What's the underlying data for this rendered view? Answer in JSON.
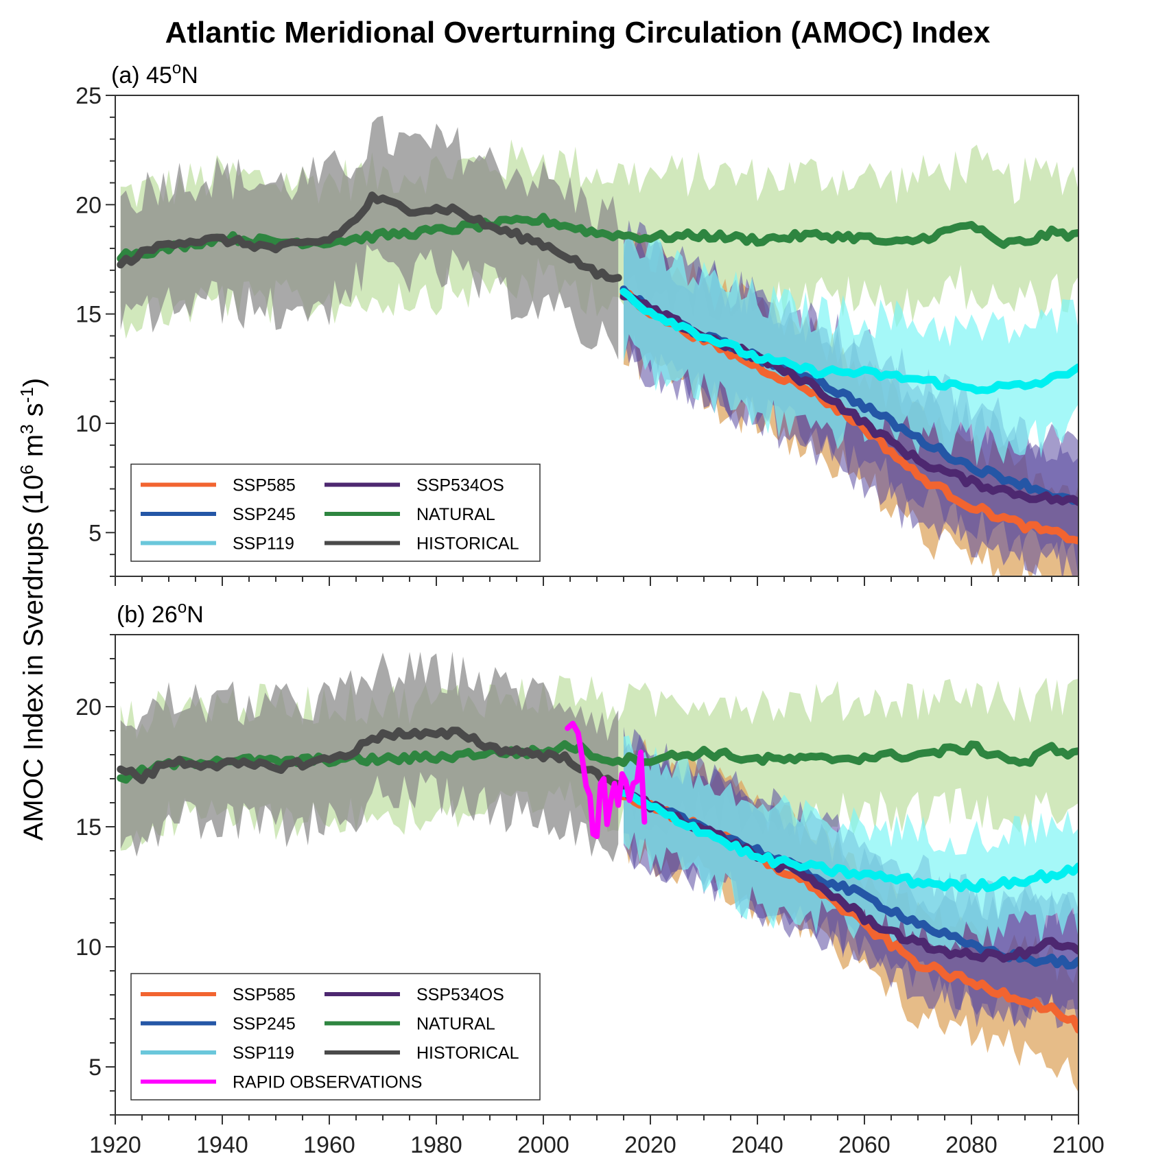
{
  "chart_data": {
    "type": "line",
    "title": "Atlantic Meridional Overturning Circulation (AMOC) Index",
    "ylabel_parts": [
      "AMOC Index in Sverdrups (10",
      "6",
      " m",
      "3",
      " s",
      "-1",
      ")"
    ],
    "xlim": [
      1920,
      2100
    ],
    "xticks": [
      1920,
      1940,
      1960,
      1980,
      2000,
      2020,
      2040,
      2060,
      2080,
      2100
    ],
    "grid": false,
    "legend_placement": "bottom-left",
    "colors": {
      "SSP585": "#f26430",
      "SSP245": "#2456a6",
      "SSP119": "#6ac7db",
      "SSP119_line": "#00f0f0",
      "SSP534OS": "#4d2870",
      "NATURAL": "#2e8540",
      "HISTORICAL": "#4a4a4a",
      "RAPID": "#ff00ff",
      "band_natural": "#b9dc98",
      "band_historical": "#8c8c8c",
      "band_ssp585": "#dda560",
      "band_ssp119": "#7ff5f5",
      "band_ssp245_534": "#5a4aa0"
    },
    "panels": [
      {
        "label_main": "(a) 45",
        "label_sup": "o",
        "label_end": "N",
        "ylim": [
          3,
          25
        ],
        "yticks": [
          5,
          10,
          15,
          20,
          25
        ],
        "legend": [
          {
            "name": "SSP585",
            "key": "SSP585"
          },
          {
            "name": "SSP534OS",
            "key": "SSP534OS"
          },
          {
            "name": "SSP245",
            "key": "SSP245"
          },
          {
            "name": "NATURAL",
            "key": "NATURAL"
          },
          {
            "name": "SSP119",
            "key": "SSP119"
          },
          {
            "name": "HISTORICAL",
            "key": "HISTORICAL"
          }
        ],
        "series": [
          {
            "name": "NATURAL",
            "key": "NATURAL",
            "spread": 3.1,
            "points": [
              [
                1921,
                17.7
              ],
              [
                1930,
                18.0
              ],
              [
                1940,
                18.5
              ],
              [
                1950,
                18.3
              ],
              [
                1960,
                18.3
              ],
              [
                1970,
                18.6
              ],
              [
                1980,
                18.8
              ],
              [
                1990,
                19.1
              ],
              [
                2000,
                19.3
              ],
              [
                2010,
                18.7
              ],
              [
                2020,
                18.5
              ],
              [
                2030,
                18.6
              ],
              [
                2040,
                18.4
              ],
              [
                2050,
                18.6
              ],
              [
                2060,
                18.5
              ],
              [
                2065,
                18.2
              ],
              [
                2070,
                18.4
              ],
              [
                2080,
                19.1
              ],
              [
                2085,
                18.2
              ],
              [
                2090,
                18.3
              ],
              [
                2095,
                18.7
              ],
              [
                2100,
                18.6
              ]
            ]
          },
          {
            "name": "HISTORICAL",
            "key": "HISTORICAL",
            "spread": 3.2,
            "points": [
              [
                1921,
                17.3
              ],
              [
                1930,
                18.3
              ],
              [
                1940,
                18.4
              ],
              [
                1950,
                18.0
              ],
              [
                1960,
                18.4
              ],
              [
                1965,
                19.3
              ],
              [
                1968,
                20.3
              ],
              [
                1975,
                19.8
              ],
              [
                1983,
                19.8
              ],
              [
                1990,
                19.0
              ],
              [
                2000,
                18.2
              ],
              [
                2005,
                17.6
              ],
              [
                2010,
                16.8
              ],
              [
                2014,
                16.6
              ]
            ]
          },
          {
            "name": "SSP585",
            "key": "SSP585",
            "spread": 2.8,
            "points": [
              [
                2015,
                16.0
              ],
              [
                2020,
                15.1
              ],
              [
                2030,
                13.8
              ],
              [
                2040,
                12.6
              ],
              [
                2050,
                11.5
              ],
              [
                2060,
                9.8
              ],
              [
                2070,
                7.6
              ],
              [
                2080,
                6.2
              ],
              [
                2090,
                5.3
              ],
              [
                2100,
                4.7
              ]
            ]
          },
          {
            "name": "SSP245",
            "key": "SSP245",
            "spread": 3.0,
            "points": [
              [
                2015,
                16.0
              ],
              [
                2020,
                15.2
              ],
              [
                2030,
                14.0
              ],
              [
                2040,
                13.0
              ],
              [
                2050,
                12.1
              ],
              [
                2060,
                10.8
              ],
              [
                2070,
                9.3
              ],
              [
                2080,
                8.0
              ],
              [
                2090,
                7.2
              ],
              [
                2100,
                6.3
              ]
            ]
          },
          {
            "name": "SSP534OS",
            "key": "SSP534OS",
            "spread": 3.0,
            "points": [
              [
                2015,
                15.9
              ],
              [
                2020,
                15.2
              ],
              [
                2030,
                14.0
              ],
              [
                2040,
                13.0
              ],
              [
                2050,
                11.8
              ],
              [
                2060,
                10.0
              ],
              [
                2070,
                8.3
              ],
              [
                2080,
                7.3
              ],
              [
                2090,
                6.7
              ],
              [
                2100,
                6.4
              ]
            ]
          },
          {
            "name": "SSP119",
            "key": "SSP119",
            "spread": 2.9,
            "points": [
              [
                2015,
                16.0
              ],
              [
                2020,
                15.1
              ],
              [
                2030,
                14.0
              ],
              [
                2040,
                13.0
              ],
              [
                2050,
                12.4
              ],
              [
                2060,
                12.3
              ],
              [
                2070,
                12.0
              ],
              [
                2080,
                11.6
              ],
              [
                2090,
                11.7
              ],
              [
                2095,
                12.0
              ],
              [
                2100,
                12.6
              ]
            ]
          }
        ]
      },
      {
        "label_main": "(b) 26",
        "label_sup": "o",
        "label_end": "N",
        "ylim": [
          3,
          23
        ],
        "yticks": [
          5,
          10,
          15,
          20
        ],
        "legend": [
          {
            "name": "SSP585",
            "key": "SSP585"
          },
          {
            "name": "SSP534OS",
            "key": "SSP534OS"
          },
          {
            "name": "SSP245",
            "key": "SSP245"
          },
          {
            "name": "NATURAL",
            "key": "NATURAL"
          },
          {
            "name": "SSP119",
            "key": "SSP119"
          },
          {
            "name": "HISTORICAL",
            "key": "HISTORICAL"
          },
          {
            "name": "RAPID OBSERVATIONS",
            "key": "RAPID"
          }
        ],
        "series": [
          {
            "name": "NATURAL",
            "key": "NATURAL",
            "spread": 2.6,
            "points": [
              [
                1921,
                17.0
              ],
              [
                1930,
                17.6
              ],
              [
                1940,
                17.8
              ],
              [
                1950,
                17.7
              ],
              [
                1960,
                17.8
              ],
              [
                1970,
                17.8
              ],
              [
                1980,
                17.9
              ],
              [
                1990,
                18.1
              ],
              [
                2000,
                18.1
              ],
              [
                2005,
                18.4
              ],
              [
                2012,
                17.8
              ],
              [
                2020,
                17.8
              ],
              [
                2030,
                18.1
              ],
              [
                2040,
                17.8
              ],
              [
                2050,
                17.8
              ],
              [
                2060,
                17.9
              ],
              [
                2070,
                18.0
              ],
              [
                2080,
                18.3
              ],
              [
                2085,
                18.0
              ],
              [
                2090,
                17.6
              ],
              [
                2095,
                18.3
              ],
              [
                2100,
                18.0
              ]
            ]
          },
          {
            "name": "HISTORICAL",
            "key": "HISTORICAL",
            "spread": 2.8,
            "points": [
              [
                1921,
                17.5
              ],
              [
                1925,
                17.0
              ],
              [
                1930,
                17.7
              ],
              [
                1940,
                17.6
              ],
              [
                1950,
                17.5
              ],
              [
                1960,
                17.8
              ],
              [
                1965,
                18.2
              ],
              [
                1970,
                18.9
              ],
              [
                1980,
                18.8
              ],
              [
                1985,
                18.9
              ],
              [
                1990,
                18.3
              ],
              [
                2000,
                18.0
              ],
              [
                2005,
                17.8
              ],
              [
                2010,
                17.1
              ],
              [
                2014,
                16.7
              ]
            ]
          },
          {
            "name": "SSP585",
            "key": "SSP585",
            "spread": 2.3,
            "points": [
              [
                2015,
                16.4
              ],
              [
                2020,
                15.8
              ],
              [
                2030,
                15.0
              ],
              [
                2040,
                13.7
              ],
              [
                2050,
                12.6
              ],
              [
                2060,
                10.9
              ],
              [
                2070,
                9.3
              ],
              [
                2080,
                8.5
              ],
              [
                2090,
                7.8
              ],
              [
                2095,
                7.4
              ],
              [
                2100,
                6.7
              ]
            ]
          },
          {
            "name": "SSP245",
            "key": "SSP245",
            "spread": 2.4,
            "points": [
              [
                2015,
                16.4
              ],
              [
                2020,
                15.8
              ],
              [
                2030,
                15.0
              ],
              [
                2040,
                14.0
              ],
              [
                2050,
                13.0
              ],
              [
                2060,
                12.1
              ],
              [
                2070,
                11.0
              ],
              [
                2080,
                10.0
              ],
              [
                2090,
                9.5
              ],
              [
                2100,
                9.3
              ]
            ]
          },
          {
            "name": "SSP534OS",
            "key": "SSP534OS",
            "spread": 2.4,
            "points": [
              [
                2015,
                16.4
              ],
              [
                2020,
                15.9
              ],
              [
                2030,
                14.9
              ],
              [
                2040,
                13.8
              ],
              [
                2050,
                12.8
              ],
              [
                2060,
                11.2
              ],
              [
                2070,
                10.1
              ],
              [
                2080,
                9.6
              ],
              [
                2090,
                9.7
              ],
              [
                2095,
                10.2
              ],
              [
                2100,
                9.8
              ]
            ]
          },
          {
            "name": "SSP119",
            "key": "SSP119",
            "spread": 2.3,
            "points": [
              [
                2015,
                16.4
              ],
              [
                2020,
                15.8
              ],
              [
                2030,
                14.8
              ],
              [
                2040,
                13.7
              ],
              [
                2050,
                13.3
              ],
              [
                2060,
                13.0
              ],
              [
                2070,
                12.7
              ],
              [
                2080,
                12.5
              ],
              [
                2090,
                12.8
              ],
              [
                2100,
                13.2
              ]
            ]
          },
          {
            "name": "RAPID OBSERVATIONS",
            "key": "RAPID",
            "spread": 0,
            "points": [
              [
                2004.5,
                19.1
              ],
              [
                2005.5,
                19.3
              ],
              [
                2006.5,
                18.9
              ],
              [
                2007.3,
                17.8
              ],
              [
                2008.0,
                16.7
              ],
              [
                2008.7,
                16.3
              ],
              [
                2009.3,
                14.7
              ],
              [
                2010.0,
                14.6
              ],
              [
                2010.7,
                16.8
              ],
              [
                2011.3,
                17.0
              ],
              [
                2011.9,
                15.1
              ],
              [
                2012.6,
                16.1
              ],
              [
                2013.3,
                16.8
              ],
              [
                2014.0,
                15.9
              ],
              [
                2014.7,
                17.2
              ],
              [
                2015.4,
                16.9
              ],
              [
                2016.1,
                16.1
              ],
              [
                2016.8,
                16.8
              ],
              [
                2017.5,
                16.9
              ],
              [
                2018.2,
                18.1
              ],
              [
                2018.9,
                15.2
              ]
            ]
          }
        ]
      }
    ]
  }
}
